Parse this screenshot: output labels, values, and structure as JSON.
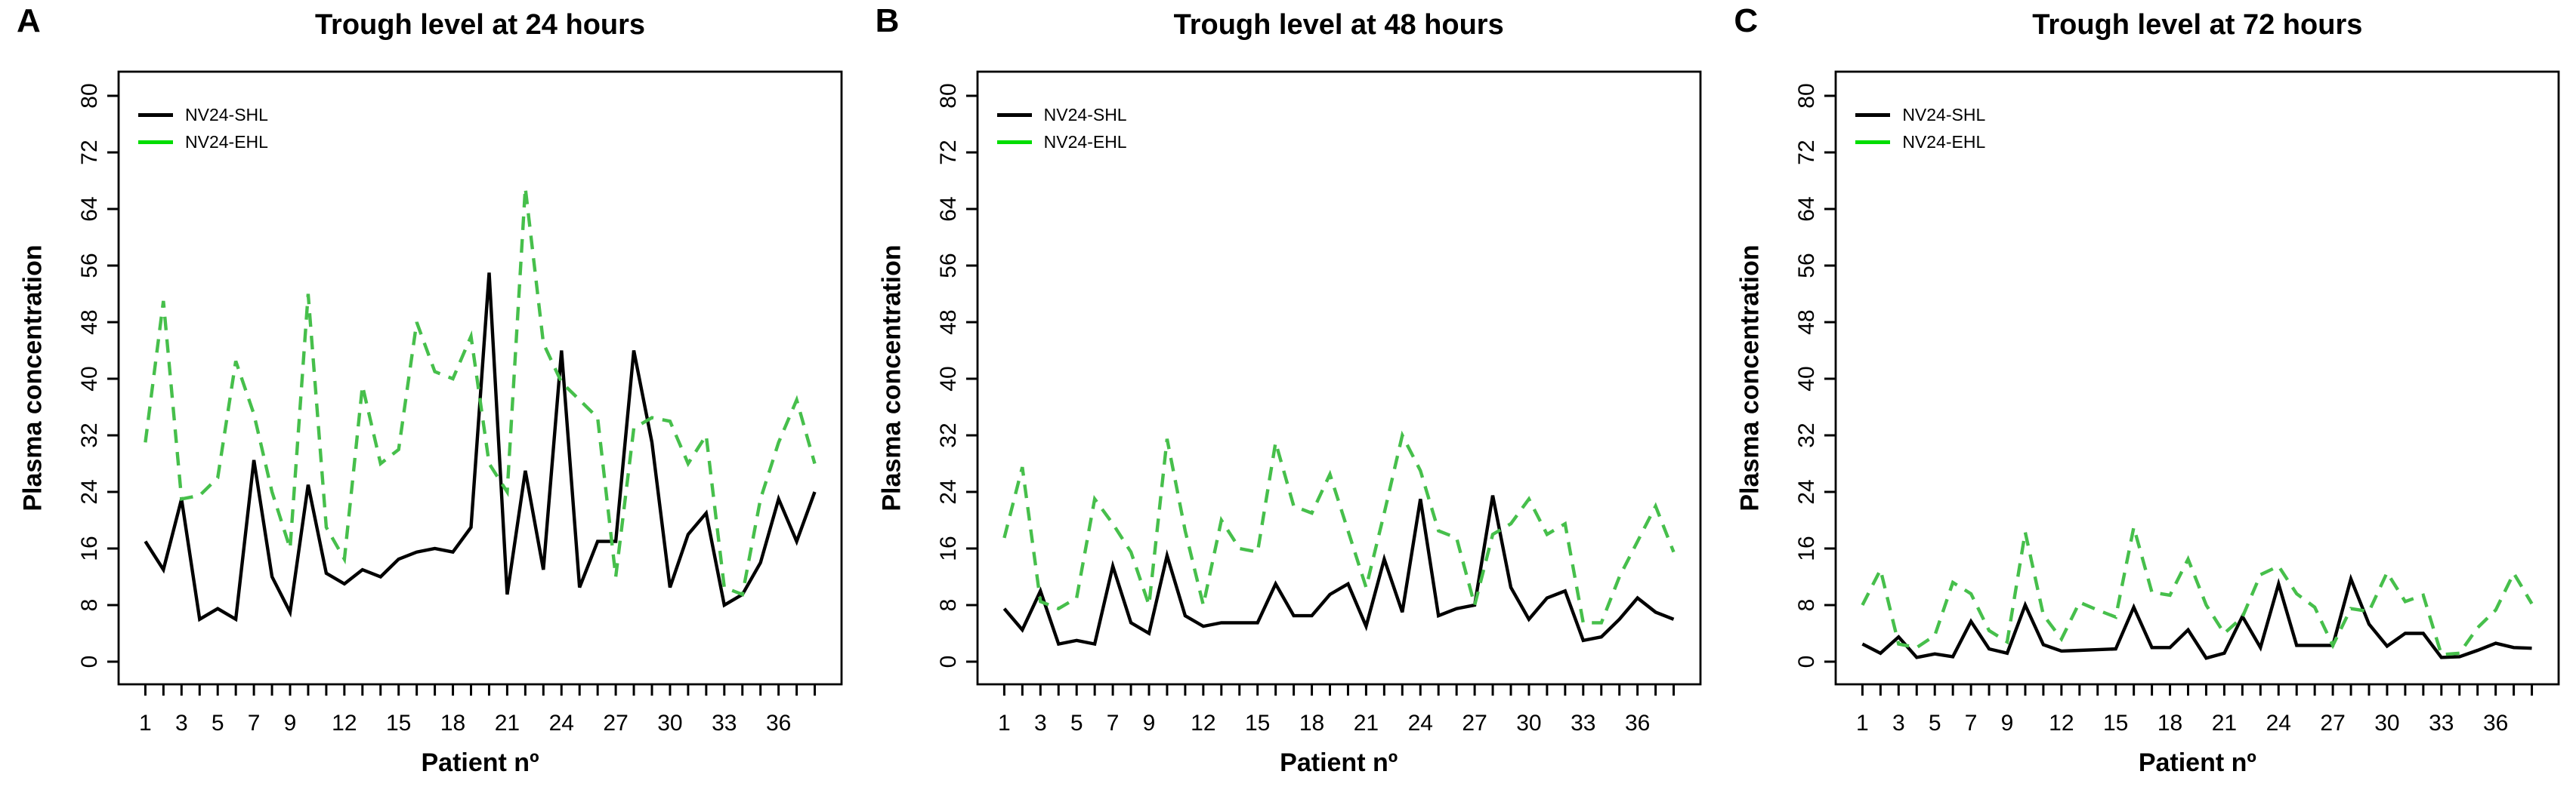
{
  "figure": {
    "ylabel": "Plasma concentration",
    "xlabel": "Patient nº",
    "legend": {
      "shl": "NV24-SHL",
      "ehl": "NV24-EHL"
    },
    "colors": {
      "shl": "#000000",
      "ehl_legend": "#00dd00",
      "ehl_line": "#46bf4b",
      "axis": "#000000",
      "background": "#ffffff"
    },
    "panels": [
      {
        "letter": "A",
        "title": "Trough level at 24 hours"
      },
      {
        "letter": "B",
        "title": "Trough level at 48 hours"
      },
      {
        "letter": "C",
        "title": "Trough level at 72 hours"
      }
    ]
  },
  "chart_data": [
    {
      "type": "line",
      "title": "Trough level at 24 hours",
      "xlabel": "Patient nº",
      "ylabel": "Plasma concentration",
      "ylim": [
        0,
        80
      ],
      "yticks": [
        0,
        8,
        16,
        24,
        32,
        40,
        48,
        56,
        64,
        72,
        80
      ],
      "patients": 38,
      "x_ticklabels": [
        1,
        3,
        5,
        7,
        9,
        12,
        15,
        18,
        21,
        24,
        27,
        30,
        33,
        36
      ],
      "grid": false,
      "legend_position": "top-left",
      "series": [
        {
          "name": "NV24-SHL",
          "style": "solid",
          "color": "black",
          "values": [
            17,
            13,
            23,
            6,
            7.5,
            6,
            28.5,
            12,
            7,
            25,
            12.5,
            11,
            13,
            12,
            14.5,
            15.5,
            16,
            15.5,
            19,
            55,
            9.5,
            27,
            13,
            44,
            10.5,
            17,
            17,
            44,
            31,
            10.5,
            18,
            21,
            8,
            9.5,
            14,
            23,
            17,
            24
          ]
        },
        {
          "name": "NV24-EHL",
          "style": "dashed",
          "color": "green",
          "values": [
            31,
            51,
            23,
            23.5,
            26,
            42.5,
            35,
            24,
            16,
            52,
            19,
            14.5,
            39,
            28,
            30,
            48,
            41,
            40,
            46,
            28,
            24,
            67,
            45,
            39.5,
            37,
            34.5,
            12,
            33,
            34.5,
            34,
            28,
            32,
            10.5,
            9.5,
            23,
            31,
            37,
            28
          ]
        }
      ]
    },
    {
      "type": "line",
      "title": "Trough level at 48 hours",
      "xlabel": "Patient nº",
      "ylabel": "Plasma concentration",
      "ylim": [
        0,
        80
      ],
      "yticks": [
        0,
        8,
        16,
        24,
        32,
        40,
        48,
        56,
        64,
        72,
        80
      ],
      "patients": 38,
      "x_ticklabels": [
        1,
        3,
        5,
        7,
        9,
        12,
        15,
        18,
        21,
        24,
        27,
        30,
        33,
        36
      ],
      "grid": false,
      "legend_position": "top-left",
      "series": [
        {
          "name": "NV24-SHL",
          "style": "solid",
          "color": "black",
          "values": [
            7.5,
            4.5,
            10,
            2.5,
            3,
            2.5,
            13.5,
            5.5,
            4,
            15,
            6.5,
            5,
            5.5,
            5.5,
            5.5,
            11,
            6.5,
            6.5,
            9.5,
            11,
            5,
            14.5,
            7,
            23,
            6.5,
            7.5,
            8,
            23.5,
            10.5,
            6,
            9,
            10,
            3,
            3.5,
            6,
            9,
            7,
            6
          ]
        },
        {
          "name": "NV24-EHL",
          "style": "dashed",
          "color": "green",
          "values": [
            17.5,
            27.5,
            8.5,
            7.5,
            9,
            23,
            19.5,
            15.5,
            8,
            31.5,
            18.5,
            8,
            20,
            16,
            15.5,
            31,
            22,
            21,
            26.5,
            18.5,
            10.5,
            21,
            32,
            27,
            18.5,
            17.5,
            8,
            18,
            19.5,
            23,
            18,
            19.5,
            5.5,
            5.5,
            12,
            17,
            22,
            15.5
          ]
        }
      ]
    },
    {
      "type": "line",
      "title": "Trough level at 72 hours",
      "xlabel": "Patient nº",
      "ylabel": "Plasma concentration",
      "ylim": [
        0,
        80
      ],
      "yticks": [
        0,
        8,
        16,
        24,
        32,
        40,
        48,
        56,
        64,
        72,
        80
      ],
      "patients": 38,
      "x_ticklabels": [
        1,
        3,
        5,
        7,
        9,
        12,
        15,
        18,
        21,
        24,
        27,
        30,
        33,
        36
      ],
      "grid": false,
      "legend_position": "top-left",
      "series": [
        {
          "name": "NV24-SHL",
          "style": "solid",
          "color": "black",
          "values": [
            2.5,
            1.2,
            3.5,
            0.6,
            1.1,
            0.7,
            5.7,
            1.8,
            1.2,
            8,
            2.4,
            1.5,
            1.6,
            1.7,
            1.8,
            7.7,
            2,
            2,
            4.5,
            0.5,
            1.2,
            6.4,
            2,
            11,
            2.3,
            2.3,
            2.3,
            11.7,
            5.3,
            2.2,
            4,
            4,
            0.6,
            0.7,
            1.6,
            2.6,
            2,
            1.9
          ]
        },
        {
          "name": "NV24-EHL",
          "style": "dashed",
          "color": "green",
          "values": [
            8,
            13,
            2.5,
            2,
            3.7,
            11.2,
            9.6,
            4.4,
            2.8,
            18.3,
            6.6,
            3.2,
            8.4,
            7.3,
            6.3,
            19,
            9.8,
            9.4,
            14.5,
            8,
            4,
            6.3,
            12.3,
            13.5,
            9.6,
            7.7,
            2.3,
            7.5,
            7.1,
            12.6,
            8.5,
            9.4,
            1,
            1.2,
            4.8,
            7.3,
            12.5,
            8.2
          ]
        }
      ]
    }
  ]
}
